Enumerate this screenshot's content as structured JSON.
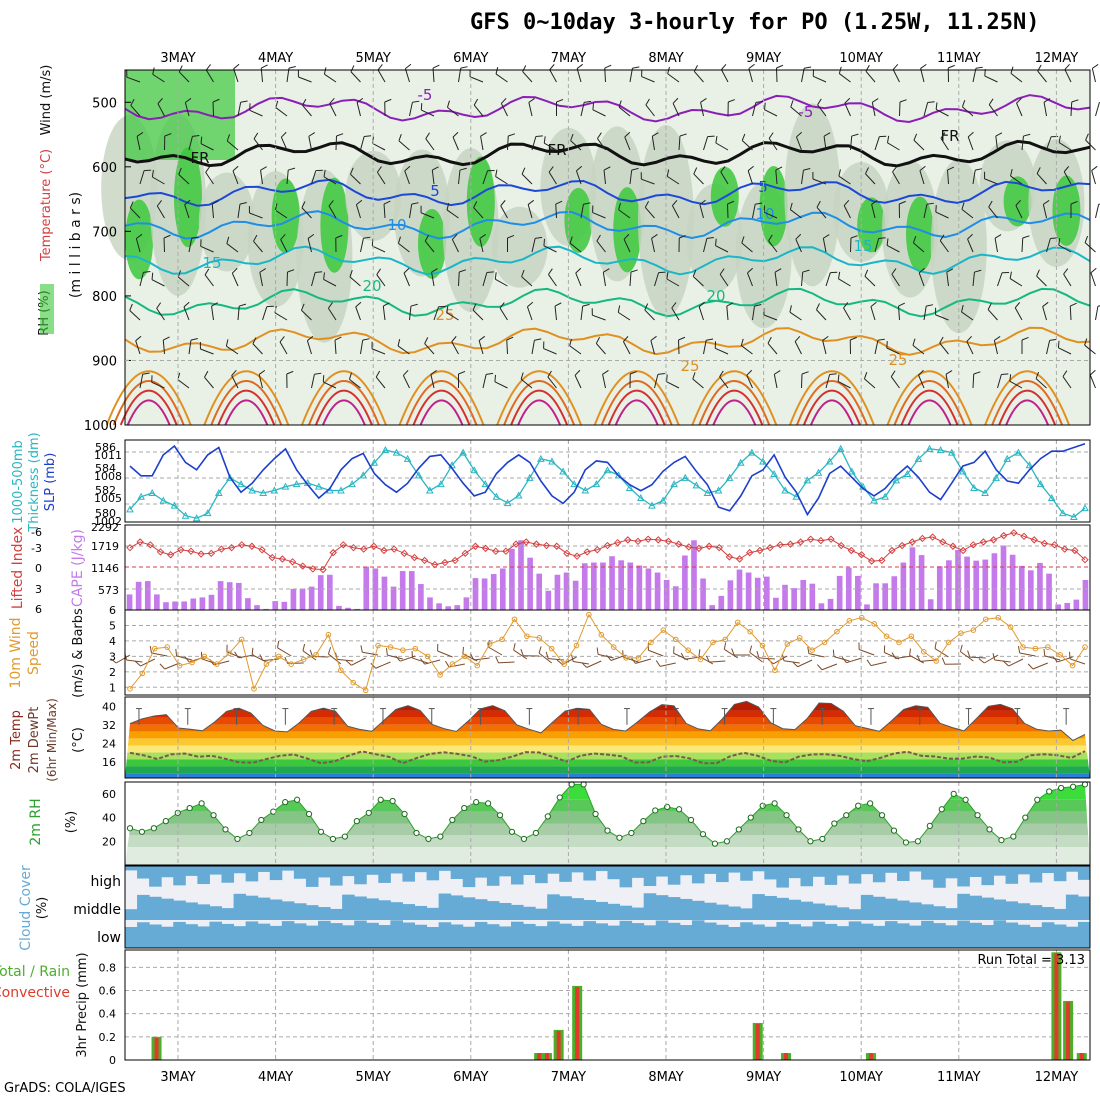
{
  "title": "GFS 0~10day 3-hourly for PO (1.25W, 11.25N)",
  "credit": "GrADS: COLA/IGES",
  "colors": {
    "rh_green": "#3cc83c",
    "slp": "#1c3fcc",
    "thickness": "#2ab6c2",
    "lifted_index": "#d44040",
    "cape": "#c47aea",
    "wind": "#e09a30",
    "rh2m": "#2ea02e",
    "cloud": "#66aad6",
    "precip_total": "#4caf2a",
    "precip_conv": "#e03a2a"
  },
  "chart_data": [
    {
      "type": "heatmap",
      "name": "upper_air",
      "ylabel_parts": [
        "RH (%)",
        "Temperature (°C)",
        "Wind (m/s)"
      ],
      "ylabel2": "(m i l l i b a r s)",
      "y_ticks": [
        "500",
        "600",
        "700",
        "800",
        "900",
        "1000"
      ],
      "ylim": [
        1000,
        450
      ],
      "x_ticks": [
        "3MAY",
        "4MAY",
        "5MAY",
        "6MAY",
        "7MAY",
        "8MAY",
        "9MAY",
        "10MAY",
        "11MAY",
        "12MAY"
      ],
      "isotherm_labels": [
        "-5",
        "-5",
        "FR",
        "FR",
        "FR",
        "5",
        "5",
        "10",
        "10",
        "15",
        "15",
        "20",
        "20",
        "25",
        "25",
        "25"
      ],
      "isotherms": [
        {
          "label": "-5",
          "level": 510,
          "color": "#8a1fb6"
        },
        {
          "label": "FR",
          "level": 580,
          "color": "#111111"
        },
        {
          "label": "5",
          "level": 640,
          "color": "#1c48d8"
        },
        {
          "label": "10",
          "level": 690,
          "color": "#1e8ee6"
        },
        {
          "label": "15",
          "level": 745,
          "color": "#1ab6c8"
        },
        {
          "label": "20",
          "level": 810,
          "color": "#16b882"
        },
        {
          "label": "25",
          "level": 870,
          "color": "#e09020"
        }
      ]
    },
    {
      "type": "line",
      "name": "slp_thickness",
      "ylabel_parts": [
        "1000-500mb",
        "Thickness (dm)",
        "SLP (mb)"
      ],
      "left_ticks": [
        "586",
        "584",
        "582",
        "580"
      ],
      "right_ticks": [
        "1011",
        "1008",
        "1005",
        "1002"
      ],
      "series": [
        {
          "name": "SLP (mb)",
          "ylim": [
            1001,
            1012
          ],
          "values": [
            1008.5,
            1007.2,
            1007.2,
            1010.0,
            1011.2,
            1009.0,
            1008.0,
            1010.0,
            1011.0,
            1007.0,
            1005.0,
            1006.2,
            1008.0,
            1009.5,
            1010.8,
            1008.0,
            1006.0,
            1004.2,
            1005.5,
            1008.0,
            1009.5,
            1010.2,
            1007.5,
            1006.0,
            1005.0,
            1006.2,
            1008.2,
            1009.8,
            1010.0,
            1008.2,
            1006.2,
            1004.5,
            1005.0,
            1007.5,
            1009.0,
            1010.0,
            1009.0,
            1006.5,
            1004.5,
            1003.5,
            1005.0,
            1008.0,
            1009.2,
            1009.0,
            1007.2,
            1006.0,
            1005.2,
            1006.0,
            1007.8,
            1009.0,
            1009.8,
            1007.8,
            1006.0,
            1003.0,
            1002.5,
            1004.5,
            1007.2,
            1008.0,
            1010.0,
            1007.0,
            1005.0,
            1002.0,
            1004.2,
            1007.5,
            1008.5,
            1007.0,
            1005.5,
            1004.5,
            1005.5,
            1007.2,
            1008.5,
            1007.0,
            1005.0,
            1004.0,
            1006.2,
            1008.5,
            1009.0,
            1010.5,
            1008.0,
            1006.5,
            1006.2,
            1008.0,
            1009.5,
            1010.5,
            1010.5,
            1011.0,
            1011.5
          ]
        },
        {
          "name": "Thickness (dm)",
          "ylim": [
            579.5,
            586
          ],
          "values": [
            580.5,
            581.5,
            581.8,
            581.2,
            580.8,
            580.0,
            579.8,
            580.2,
            581.8,
            583.0,
            582.5,
            582.0,
            581.8,
            582.0,
            582.3,
            582.5,
            582.6,
            582.3,
            582.0,
            582.0,
            582.5,
            583.2,
            584.2,
            585.2,
            585.0,
            584.5,
            583.2,
            582.0,
            582.5,
            584.0,
            585.0,
            583.6,
            582.5,
            581.5,
            581.0,
            581.6,
            583.0,
            584.5,
            584.3,
            583.5,
            582.5,
            582.0,
            582.5,
            583.6,
            583.2,
            582.2,
            581.4,
            580.8,
            581.2,
            582.5,
            583.0,
            582.4,
            581.8,
            582.0,
            583.0,
            584.2,
            585.0,
            584.3,
            583.3,
            582.0,
            581.5,
            582.8,
            583.4,
            584.3,
            585.3,
            583.5,
            582.3,
            581.2,
            581.5,
            582.8,
            583.3,
            584.5,
            585.3,
            585.2,
            585.0,
            583.5,
            582.2,
            581.8,
            583.0,
            584.5,
            585.0,
            584.0,
            582.5,
            581.4,
            580.2,
            579.9,
            580.6
          ]
        }
      ]
    },
    {
      "type": "bar",
      "name": "lifted_cape",
      "ylabel_parts": [
        "Lifted Index",
        "CAPE (J/kg)"
      ],
      "left_ticks": [
        "-6",
        "-3",
        "0",
        "3",
        "6"
      ],
      "right_ticks": [
        "2292",
        "1719",
        "1146",
        "573"
      ],
      "series": [
        {
          "name": "Lifted Index",
          "ylim": [
            -6,
            6
          ],
          "values": [
            -2.8,
            -3.6,
            -3.2,
            -2.2,
            -1.8,
            -2.5,
            -2.3,
            -1.9,
            -2.0,
            -2.6,
            -2.8,
            -3.2,
            -3.0,
            -2.5,
            -1.4,
            -1.2,
            -0.8,
            -0.2,
            0.2,
            0.3,
            -2.1,
            -3.2,
            -2.8,
            -2.6,
            -3.0,
            -2.4,
            -2.6,
            -2.0,
            -1.4,
            -1.0,
            -0.4,
            -0.7,
            -1.0,
            -2.0,
            -3.0,
            -2.7,
            -2.3,
            -2.3,
            -3.3,
            -3.6,
            -3.3,
            -3.1,
            -3.0,
            -2.0,
            -1.6,
            -2.2,
            -2.5,
            -3.1,
            -3.5,
            -3.9,
            -3.7,
            -4.0,
            -3.9,
            -3.7,
            -3.3,
            -2.9,
            -2.7,
            -3.0,
            -2.8,
            -1.5,
            -1.2,
            -2.1,
            -2.4,
            -2.8,
            -3.2,
            -3.3,
            -3.6,
            -4.0,
            -3.8,
            -4.0,
            -3.1,
            -2.4,
            -1.8,
            -0.9,
            -1.0,
            -2.4,
            -3.1,
            -3.6,
            -4.1,
            -4.3,
            -3.6,
            -3.0,
            -2.4,
            -3.2,
            -3.6,
            -3.9,
            -4.5,
            -4.9,
            -4.4,
            -3.9,
            -3.4,
            -3.2,
            -2.6,
            -2.4,
            -1.1
          ]
        },
        {
          "name": "CAPE (J/kg)",
          "ylim": [
            0,
            2292
          ],
          "values": [
            420,
            760,
            780,
            420,
            210,
            230,
            230,
            310,
            340,
            410,
            780,
            750,
            730,
            320,
            130,
            30,
            240,
            220,
            570,
            580,
            630,
            940,
            950,
            110,
            60,
            30,
            1170,
            1120,
            900,
            630,
            1050,
            1050,
            700,
            340,
            180,
            100,
            130,
            340,
            860,
            850,
            970,
            1120,
            1650,
            1880,
            1410,
            980,
            520,
            950,
            1010,
            790,
            1260,
            1280,
            1280,
            1450,
            1340,
            1280,
            1200,
            1120,
            1010,
            810,
            640,
            1470,
            1880,
            850,
            130,
            380,
            800,
            1090,
            1010,
            870,
            900,
            330,
            680,
            590,
            810,
            710,
            180,
            300,
            920,
            1140,
            920,
            150,
            720,
            720,
            910,
            1280,
            1690,
            1480,
            290,
            1180,
            1340,
            1620,
            1440,
            1330,
            1360,
            1530,
            1740,
            1490,
            1190,
            1070,
            1270,
            980,
            150,
            190,
            280,
            810
          ]
        }
      ]
    },
    {
      "type": "line",
      "name": "wind10m",
      "ylabel_parts": [
        "10m Wind",
        "Speed",
        "(m/s) & Barbs"
      ],
      "ylim": [
        0.5,
        6
      ],
      "y_ticks": [
        "1",
        "2",
        "3",
        "4",
        "5",
        "6"
      ],
      "values": [
        0.9,
        1.9,
        3.5,
        3.6,
        2.4,
        2.6,
        3.0,
        2.5,
        3.2,
        4.1,
        0.9,
        2.5,
        3.0,
        2.5,
        2.8,
        3.1,
        4.4,
        2.1,
        1.3,
        0.8,
        3.7,
        3.6,
        3.4,
        3.5,
        3.0,
        1.8,
        2.5,
        3.0,
        2.4,
        3.8,
        4.1,
        5.4,
        4.3,
        4.2,
        3.5,
        2.5,
        3.7,
        5.7,
        4.4,
        3.6,
        2.9,
        2.9,
        3.9,
        4.7,
        4.1,
        3.4,
        2.8,
        3.9,
        4.1,
        5.2,
        4.6,
        3.7,
        2.1,
        3.8,
        4.2,
        3.4,
        3.9,
        4.6,
        5.3,
        5.5,
        5.1,
        4.3,
        3.9,
        4.3,
        3.3,
        2.7,
        3.9,
        4.5,
        4.7,
        5.4,
        5.5,
        4.9,
        3.6,
        3.5,
        3.6,
        3.1,
        2.4,
        3.6
      ]
    },
    {
      "type": "area",
      "name": "temp2m",
      "ylabel_parts": [
        "2m Temp",
        "2m DewPt",
        "(6hr Min/Max)",
        "(°C)"
      ],
      "ylim": [
        9,
        44
      ],
      "y_ticks": [
        "40",
        "32",
        "24",
        "16"
      ],
      "temp_values": [
        32.5,
        34.6,
        35.8,
        36.4,
        30.6,
        30.1,
        29.4,
        33.2,
        37.8,
        39.2,
        37.1,
        31.7,
        29.3,
        28.9,
        32.8,
        37.8,
        39.2,
        37.8,
        31.4,
        30.0,
        29.2,
        33.9,
        38.6,
        40.3,
        38.2,
        32.1,
        30.3,
        29.1,
        33.7,
        38.9,
        40.3,
        38.1,
        32.0,
        30.1,
        28.5,
        33.3,
        37.9,
        39.1,
        38.7,
        32.1,
        30.0,
        29.3,
        33.3,
        37.6,
        40.7,
        40.2,
        32.6,
        30.2,
        29.4,
        34.5,
        40.8,
        42.1,
        39.7,
        32.9,
        30.3,
        29.9,
        34.6,
        41.4,
        41.2,
        37.9,
        31.6,
        30.4,
        29.2,
        33.7,
        38.6,
        40.2,
        39.5,
        32.7,
        30.8,
        29.4,
        34.6,
        40.0,
        40.8,
        38.9,
        32.6,
        30.1,
        29.3,
        29.7,
        25.2,
        27.8
      ],
      "dew_values": [
        19.9,
        18.8,
        17.2,
        19.2,
        19.6,
        18.2,
        18.6,
        17.3,
        15.8,
        15.6,
        17.2,
        18.6,
        19.2,
        17.4,
        15.4,
        16.2,
        18.6,
        20.5,
        19.3,
        18.1,
        15.4,
        17.6,
        19.4,
        20.1,
        19.4,
        18.4,
        16.1,
        16.7,
        18.2,
        20.2,
        20.0,
        18.1,
        16.1,
        18.6,
        19.6,
        19.1,
        18.4,
        15.7,
        15.8,
        18.2,
        18.5,
        17.5,
        15.4,
        15.4,
        18.4,
        19.9,
        18.6,
        16.4,
        15.7,
        18.2,
        19.2,
        19.3,
        18.6,
        17.2,
        16.2,
        17.7,
        19.6,
        20.3,
        18.6,
        18.3,
        17.4,
        17.4,
        18.3,
        17.8,
        15.8,
        16.0,
        18.8,
        19.3,
        18.8,
        17.7,
        20.6
      ]
    },
    {
      "type": "area",
      "name": "rh2m",
      "ylabel_parts": [
        "2m RH",
        "(%)"
      ],
      "ylim": [
        0,
        70
      ],
      "y_ticks": [
        "60",
        "40",
        "20"
      ],
      "values": [
        31,
        28,
        31,
        37,
        44,
        48,
        52,
        42,
        30,
        22,
        27,
        38,
        45,
        53,
        55,
        43,
        28,
        22,
        24,
        37,
        44,
        55,
        54,
        43,
        27,
        22,
        24,
        38,
        48,
        53,
        52,
        42,
        28,
        22,
        27,
        41,
        57,
        68,
        68,
        43,
        29,
        23,
        27,
        37,
        46,
        49,
        47,
        38,
        26,
        18,
        20,
        30,
        40,
        50,
        52,
        42,
        30,
        20,
        22,
        35,
        42,
        50,
        52,
        42,
        29,
        19,
        20,
        33,
        47,
        60,
        55,
        42,
        30,
        21,
        24,
        40,
        55,
        62,
        65,
        66,
        68
      ]
    },
    {
      "type": "heatmap",
      "name": "cloud_cover",
      "ylabel_parts": [
        "Cloud Cover",
        "(%)"
      ],
      "row_labels": [
        "high",
        "middle",
        "low"
      ]
    },
    {
      "type": "bar",
      "name": "precip",
      "ylabel_parts": [
        "Total / Rain",
        "Convective",
        "3hr Precip (mm)"
      ],
      "ylim": [
        0,
        0.95
      ],
      "y_ticks": [
        "0.8",
        "0.6",
        "0.4",
        "0.2",
        "0"
      ],
      "annotation": "Run Total = 3.13",
      "x_ticks": [
        "3MAY",
        "4MAY",
        "5MAY",
        "6MAY",
        "7MAY",
        "8MAY",
        "9MAY",
        "10MAY",
        "11MAY",
        "12MAY"
      ],
      "bars": [
        {
          "day": 2.78,
          "total": 0.2,
          "conv": 0.19
        },
        {
          "day": 6.7,
          "total": 0.06,
          "conv": 0.06
        },
        {
          "day": 6.78,
          "total": 0.06,
          "conv": 0.06
        },
        {
          "day": 6.9,
          "total": 0.26,
          "conv": 0.25
        },
        {
          "day": 7.09,
          "total": 0.64,
          "conv": 0.63
        },
        {
          "day": 8.94,
          "total": 0.32,
          "conv": 0.31
        },
        {
          "day": 9.23,
          "total": 0.06,
          "conv": 0.06
        },
        {
          "day": 10.1,
          "total": 0.06,
          "conv": 0.06
        },
        {
          "day": 12.0,
          "total": 0.93,
          "conv": 0.92
        },
        {
          "day": 12.12,
          "total": 0.51,
          "conv": 0.5
        },
        {
          "day": 12.26,
          "total": 0.06,
          "conv": 0.06
        }
      ]
    }
  ]
}
